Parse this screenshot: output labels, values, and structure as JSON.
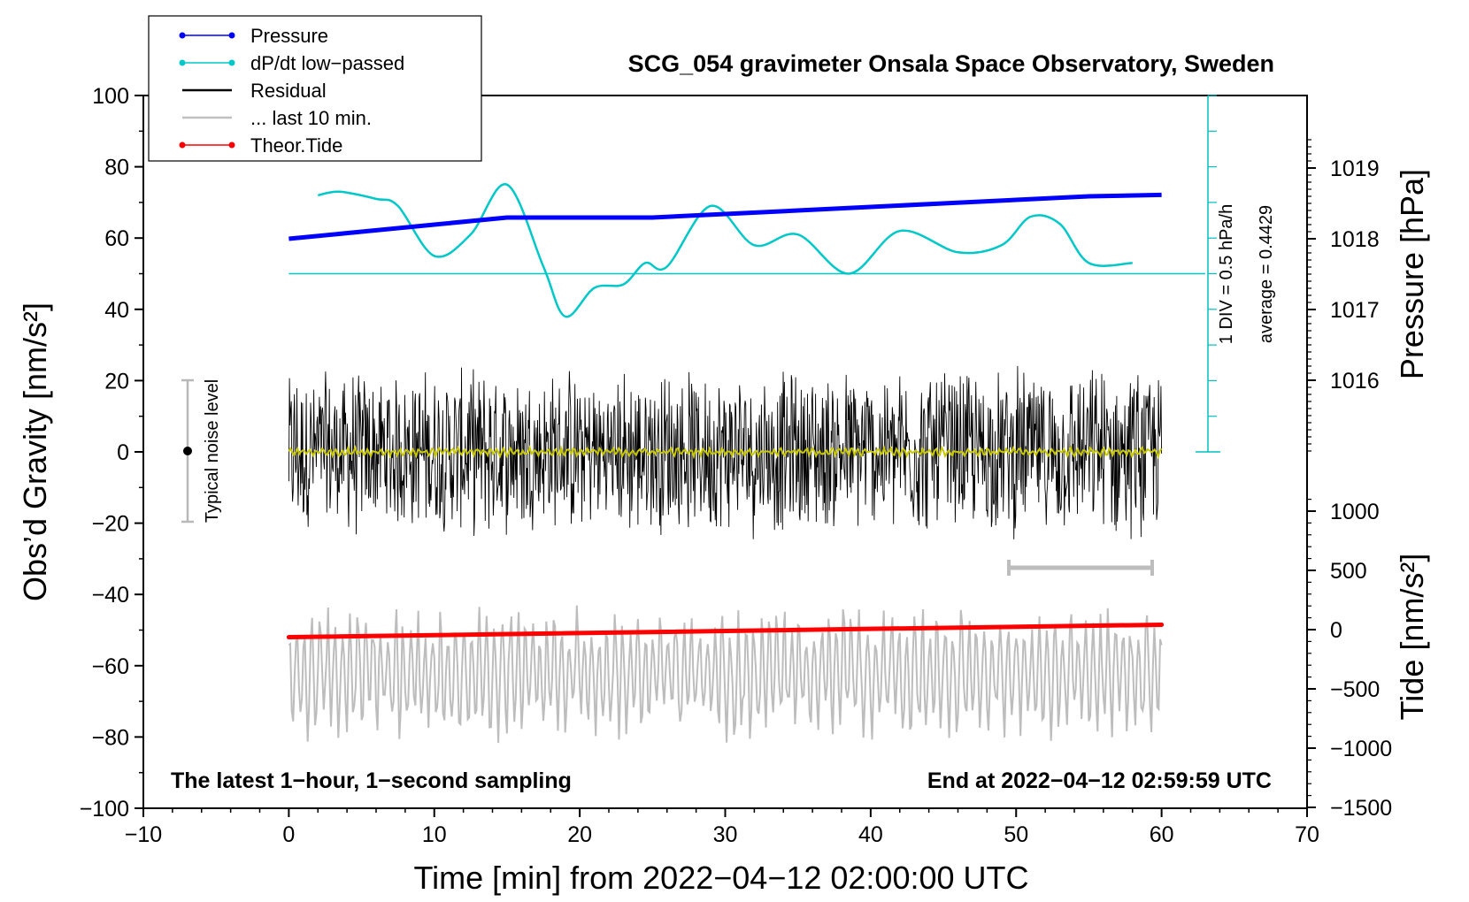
{
  "chart_data": {
    "type": "line",
    "title": "SCG_054 gravimeter Onsala Space Observatory, Sweden",
    "xlabel": "Time [min] from 2022−04−12 02:00:00 UTC",
    "ylabel_left": "Obs’d Gravity [nm/s²]",
    "ylabel_right_top": "Pressure [hPa]",
    "ylabel_right_bottom": "Tide [nm/s²]",
    "xlim": [
      -10,
      70
    ],
    "ylim": [
      -100,
      100
    ],
    "x_ticks": [
      "−10",
      "0",
      "10",
      "20",
      "30",
      "40",
      "50",
      "60",
      "70"
    ],
    "y_ticks": [
      "−100",
      "−80",
      "−60",
      "−40",
      "−20",
      "0",
      "20",
      "40",
      "60",
      "80",
      "100"
    ],
    "pressure_ticks": [
      "1016",
      "1017",
      "1018",
      "1019"
    ],
    "tide_ticks": [
      "−1500",
      "−1000",
      "−500",
      "0",
      "500",
      "1000"
    ],
    "legend": [
      {
        "label": "Pressure",
        "color": "#0000ff",
        "marker": true
      },
      {
        "label": "dP/dt low−passed",
        "color": "#00c8c8",
        "marker": true
      },
      {
        "label": "Residual",
        "color": "#000000",
        "marker": false
      },
      {
        "label": "... last 10 min.",
        "color": "#c0c0c0",
        "marker": false
      },
      {
        "label": "Theor.Tide",
        "color": "#ff0000",
        "marker": true
      }
    ],
    "annotations": {
      "bottom_left": "The latest 1−hour, 1−second sampling",
      "bottom_right": "End at 2022−04−12 02:59:59 UTC",
      "noise": "Typical noise level",
      "div": "1 DIV = 0.5 hPa/h",
      "average": "average = 0.4429"
    },
    "series": [
      {
        "name": "Pressure",
        "color": "#0000ff",
        "unit": "hPa",
        "x": [
          0,
          5,
          10,
          15,
          20,
          25,
          30,
          35,
          40,
          45,
          50,
          55,
          60
        ],
        "values": [
          1018.0,
          1018.1,
          1018.2,
          1018.3,
          1018.3,
          1018.3,
          1018.35,
          1018.4,
          1018.45,
          1018.5,
          1018.55,
          1018.6,
          1018.62
        ]
      },
      {
        "name": "dP/dt low-passed",
        "color": "#00c8c8",
        "unit": "gravity-axis units",
        "x": [
          2,
          3.5,
          6,
          7.5,
          10,
          12.5,
          15,
          17.5,
          19,
          21,
          23,
          24.5,
          26,
          29,
          32,
          35,
          38.5,
          42,
          46,
          49,
          51,
          53,
          55,
          58
        ],
        "values": [
          72,
          73,
          71,
          69,
          55,
          61,
          75,
          52,
          38,
          46,
          47,
          53,
          52,
          69,
          58,
          61,
          50,
          62,
          56,
          58,
          66,
          64,
          53,
          53
        ]
      },
      {
        "name": "dP/dt zero line",
        "color": "#00c8c8",
        "x": [
          0,
          63
        ],
        "values": [
          50,
          50
        ]
      },
      {
        "name": "Residual",
        "color": "#000000",
        "x_range": [
          0,
          60
        ],
        "amplitude": 25
      },
      {
        "name": "Residual smoothed",
        "color": "#c8c800",
        "x_range": [
          0,
          60
        ],
        "values_approx": 0
      },
      {
        "name": "... last 10 min.",
        "color": "#c0c0c0",
        "x_range": [
          0,
          60
        ],
        "center": -62,
        "amplitude": 18
      },
      {
        "name": "Theor.Tide",
        "color": "#ff0000",
        "x": [
          0,
          60
        ],
        "values": [
          -52,
          -48.5
        ]
      }
    ]
  }
}
